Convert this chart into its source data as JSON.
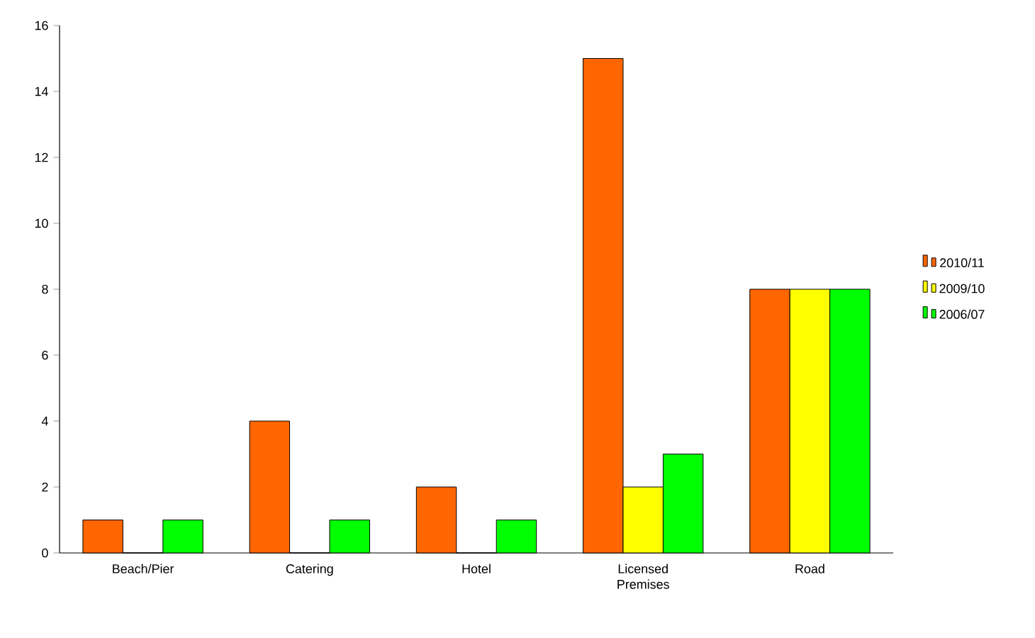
{
  "chart_data": {
    "type": "bar",
    "categories": [
      "Beach/Pier",
      "Catering",
      "Hotel",
      "Licensed Premises",
      "Road"
    ],
    "series": [
      {
        "name": "2010/11",
        "color": "#ff6600",
        "values": [
          1,
          4,
          2,
          15,
          8
        ]
      },
      {
        "name": "2009/10",
        "color": "#ffff00",
        "values": [
          0,
          0,
          0,
          2,
          8
        ]
      },
      {
        "name": "2006/07",
        "color": "#00ff00",
        "values": [
          1,
          1,
          1,
          3,
          8
        ]
      }
    ],
    "ylim": [
      0,
      16
    ],
    "yticks": [
      0,
      2,
      4,
      6,
      8,
      10,
      12,
      14,
      16
    ],
    "grid": false,
    "legend": "right"
  }
}
